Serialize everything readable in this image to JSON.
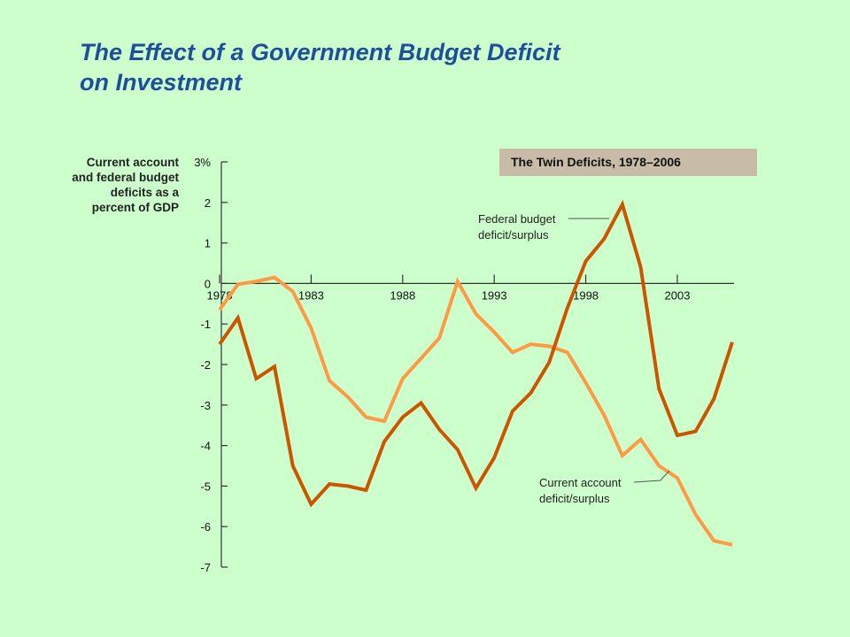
{
  "slide": {
    "title_line1": "The Effect of a Government Budget Deficit",
    "title_line2": "on Investment"
  },
  "chart_data": {
    "type": "line",
    "title": "The Twin Deficits, 1978–2006",
    "ylabel_lines": [
      "Current account",
      "and federal budget",
      "deficits as a",
      "percent of GDP"
    ],
    "ylim": [
      -7,
      3
    ],
    "xlim": [
      1978,
      2006
    ],
    "y_ticks": [
      {
        "value": 3,
        "label": "3%"
      },
      {
        "value": 2,
        "label": "2"
      },
      {
        "value": 1,
        "label": "1"
      },
      {
        "value": 0,
        "label": "0"
      },
      {
        "value": -1,
        "label": "-1"
      },
      {
        "value": -2,
        "label": "-2"
      },
      {
        "value": -3,
        "label": "-3"
      },
      {
        "value": -4,
        "label": "-4"
      },
      {
        "value": -5,
        "label": "-5"
      },
      {
        "value": -6,
        "label": "-6"
      },
      {
        "value": -7,
        "label": "-7"
      }
    ],
    "x_ticks": [
      {
        "value": 1978,
        "label": "1978"
      },
      {
        "value": 1983,
        "label": "1983"
      },
      {
        "value": 1988,
        "label": "1988"
      },
      {
        "value": 1993,
        "label": "1993"
      },
      {
        "value": 1998,
        "label": "1998"
      },
      {
        "value": 2003,
        "label": "2003"
      }
    ],
    "x": [
      1978,
      1979,
      1980,
      1981,
      1982,
      1983,
      1984,
      1985,
      1986,
      1987,
      1988,
      1989,
      1990,
      1991,
      1992,
      1993,
      1994,
      1995,
      1996,
      1997,
      1998,
      1999,
      2000,
      2001,
      2002,
      2003,
      2004,
      2005,
      2006
    ],
    "series": [
      {
        "name": "Federal budget deficit/surplus",
        "color": "#cc5500",
        "values": [
          -1.5,
          -0.85,
          -2.35,
          -2.05,
          -4.5,
          -5.45,
          -4.95,
          -5.0,
          -5.1,
          -3.9,
          -3.3,
          -2.95,
          -3.6,
          -4.1,
          -5.05,
          -4.3,
          -3.15,
          -2.7,
          -1.95,
          -0.6,
          0.55,
          1.1,
          1.95,
          0.4,
          -2.6,
          -3.75,
          -3.65,
          -2.85,
          -1.45
        ]
      },
      {
        "name": "Current account deficit/surplus",
        "color": "#ff9944",
        "values": [
          -0.65,
          -0.02,
          0.05,
          0.15,
          -0.2,
          -1.1,
          -2.4,
          -2.8,
          -3.3,
          -3.4,
          -2.35,
          -1.85,
          -1.35,
          0.05,
          -0.75,
          -1.2,
          -1.7,
          -1.5,
          -1.55,
          -1.7,
          -2.45,
          -3.25,
          -4.25,
          -3.85,
          -4.5,
          -4.8,
          -5.7,
          -6.35,
          -6.45
        ]
      }
    ],
    "annotations": [
      {
        "lines": [
          "Federal budget",
          "deficit/surplus"
        ],
        "series": 0
      },
      {
        "lines": [
          "Current account",
          "deficit/surplus"
        ],
        "series": 1
      }
    ],
    "grid": false,
    "legend": "none"
  }
}
